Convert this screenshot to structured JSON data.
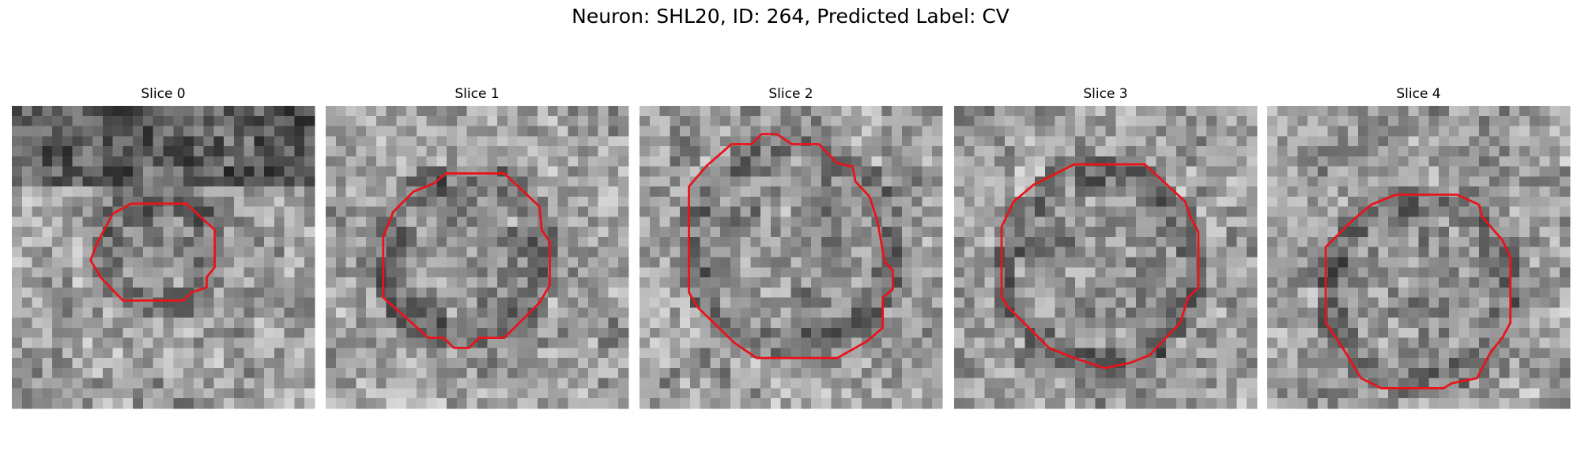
{
  "figure": {
    "title": "Neuron: SHL20, ID: 264, Predicted Label: CV",
    "panels": [
      {
        "title": "Slice 0"
      },
      {
        "title": "Slice 1"
      },
      {
        "title": "Slice 2"
      },
      {
        "title": "Slice 3"
      },
      {
        "title": "Slice 4"
      }
    ]
  }
}
